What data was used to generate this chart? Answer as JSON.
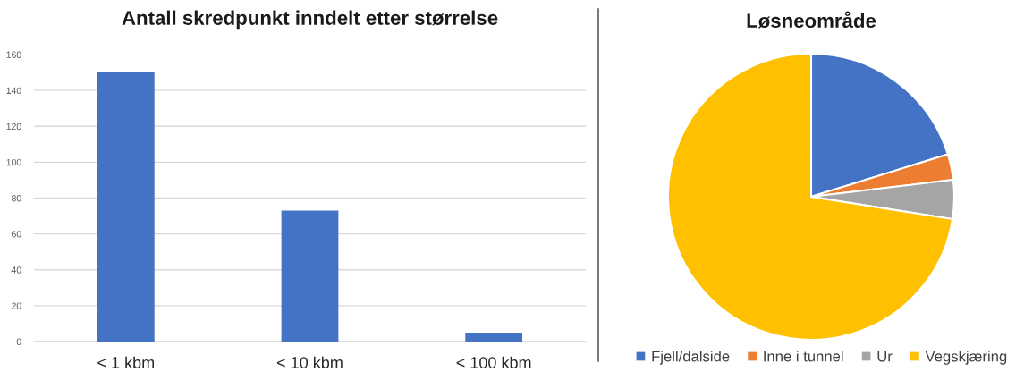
{
  "chart_data": [
    {
      "type": "bar",
      "title": "Antall skredpunkt inndelt etter størrelse",
      "categories": [
        "< 1 kbm",
        "< 10 kbm",
        "< 100 kbm"
      ],
      "values": [
        150,
        73,
        5
      ],
      "color": "#4472c4",
      "ylim": [
        0,
        160
      ],
      "yticks": [
        0,
        20,
        40,
        60,
        80,
        100,
        120,
        140,
        160
      ],
      "grid": "y"
    },
    {
      "type": "pie",
      "title": "Løsneområde",
      "categories": [
        "Fjell/dalside",
        "Inne i tunnel",
        "Ur",
        "Vegskjæring"
      ],
      "values": [
        20.2,
        2.9,
        4.4,
        72.5
      ],
      "colors": [
        "#4472c4",
        "#ed7d31",
        "#a5a5a5",
        "#ffc000"
      ],
      "legend": "bottom"
    }
  ]
}
